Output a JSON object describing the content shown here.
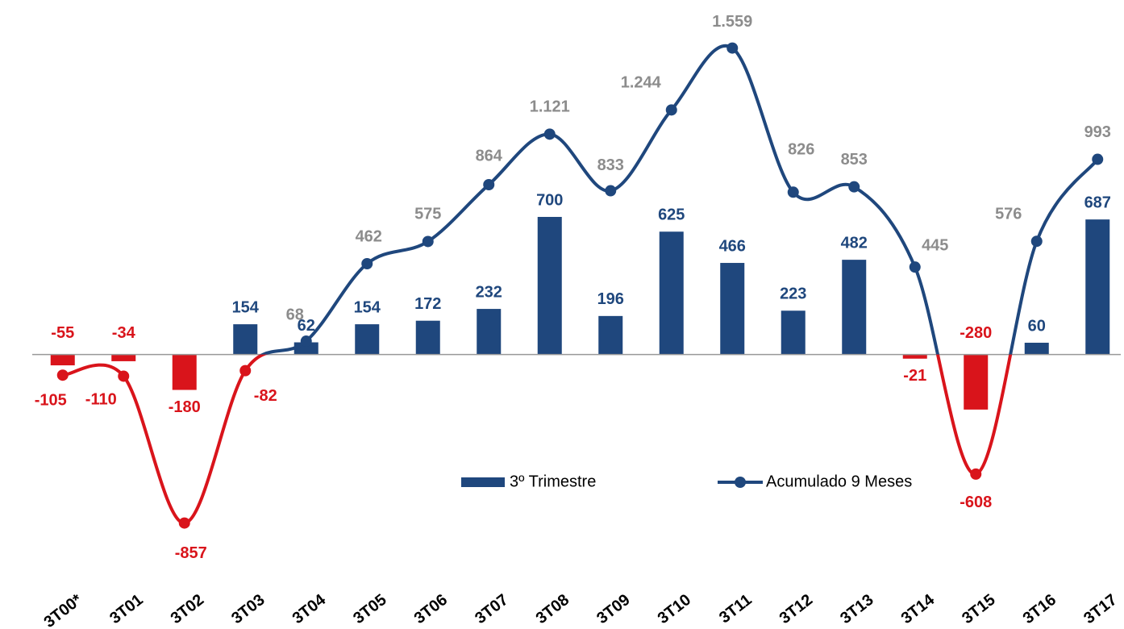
{
  "chart_data": {
    "type": "bar-line",
    "categories": [
      "3T00*",
      "3T01",
      "3T02",
      "3T03",
      "3T04",
      "3T05",
      "3T06",
      "3T07",
      "3T08",
      "3T09",
      "3T10",
      "3T11",
      "3T12",
      "3T13",
      "3T14",
      "3T15",
      "3T16",
      "3T17"
    ],
    "series": [
      {
        "name": "3º Trimestre",
        "type": "bar",
        "color": "#1f477d",
        "negative_color": "#d9141b",
        "label_color": "#1f477d",
        "values": [
          -55,
          -34,
          -180,
          154,
          62,
          154,
          172,
          232,
          700,
          196,
          625,
          466,
          223,
          482,
          -21,
          -280,
          60,
          687
        ]
      },
      {
        "name": "Acumulado 9 Meses",
        "type": "line",
        "color": "#1f477d",
        "negative_color": "#d9141b",
        "label_color": "#8c8c8c",
        "values": [
          -105,
          -110,
          -857,
          -82,
          68,
          462,
          575,
          864,
          1121,
          833,
          1244,
          1559,
          826,
          853,
          445,
          -608,
          576,
          993
        ],
        "value_labels": [
          "-105",
          "-110",
          "-857",
          "-82",
          "68",
          "462",
          "575",
          "864",
          "1.121",
          "833",
          "1.244",
          "1.559",
          "826",
          "853",
          "445",
          "-608",
          "576",
          "993"
        ]
      }
    ],
    "ylim": [
      -1150,
      1750
    ],
    "grid": false,
    "legend": "center"
  }
}
